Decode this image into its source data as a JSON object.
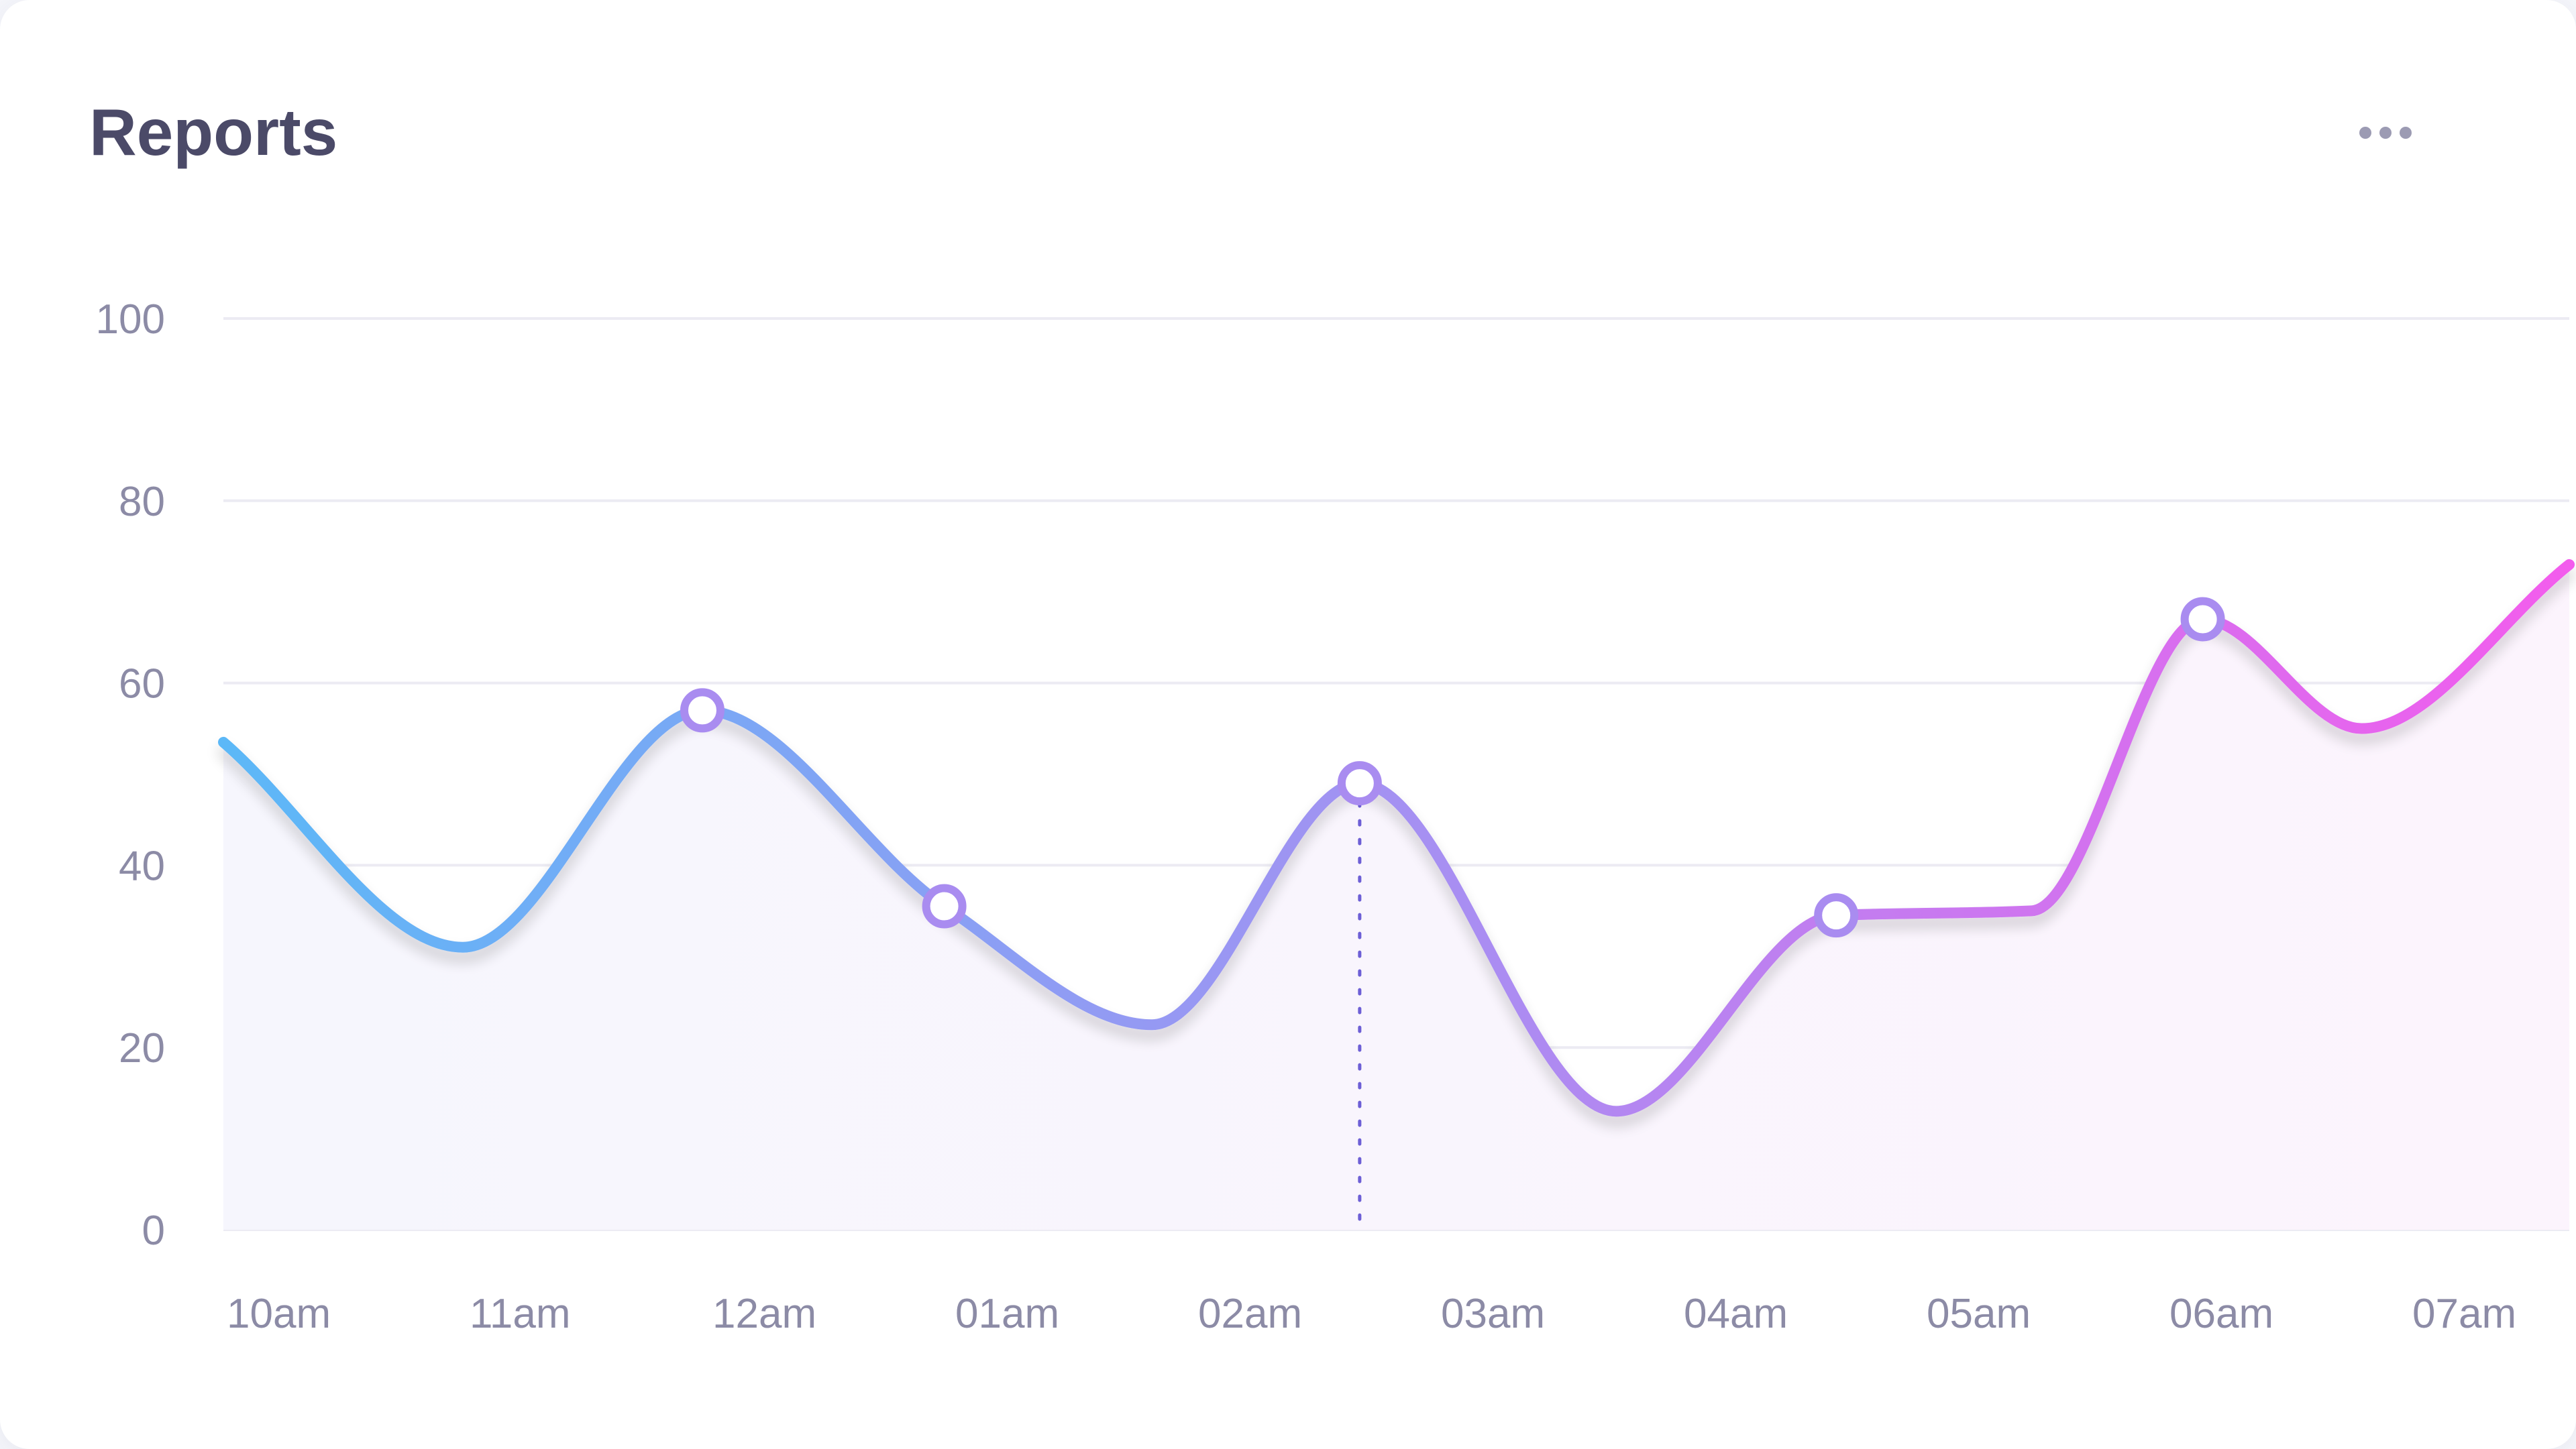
{
  "card": {
    "title": "Reports",
    "menu_icon": "more-horizontal-icon"
  },
  "colors": {
    "title": "#4b4a68",
    "axis_text": "#8c8ba6",
    "grid": "#ecebf3",
    "line_start": "#5cb8f7",
    "line_mid": "#a491f2",
    "line_end": "#f35ced",
    "marker_stroke": "#a98cf0",
    "crosshair": "#6d5fd6",
    "area_fill": "#f7f5fe"
  },
  "chart_data": {
    "type": "line",
    "title": "Reports",
    "xlabel": "",
    "ylabel": "",
    "smooth": true,
    "ylim": [
      0,
      100
    ],
    "y_ticks": [
      "100",
      "80",
      "60",
      "40",
      "20",
      "0"
    ],
    "y_tick_values": [
      100,
      80,
      60,
      40,
      20,
      0
    ],
    "xlim": [
      0,
      9.6
    ],
    "categories": [
      "10am",
      "11am",
      "12am",
      "01am",
      "02am",
      "03am",
      "04am",
      "05am",
      "06am",
      "07am"
    ],
    "category_values": [
      0,
      1,
      2,
      3,
      4,
      5,
      6,
      7,
      8,
      9
    ],
    "series": [
      {
        "name": "Reports",
        "x": [
          0,
          0.98,
          1.96,
          2.95,
          3.8,
          4.65,
          5.7,
          6.6,
          7.4,
          8.1,
          8.75,
          9.6
        ],
        "y": [
          53.5,
          31,
          57,
          35.5,
          22.5,
          49,
          13,
          34.5,
          35,
          67,
          55,
          73
        ],
        "markers": [
          2,
          3,
          5,
          7,
          9
        ]
      }
    ],
    "crosshair_x": 4.65,
    "grid": true,
    "legend": "none",
    "area_fill": true
  }
}
